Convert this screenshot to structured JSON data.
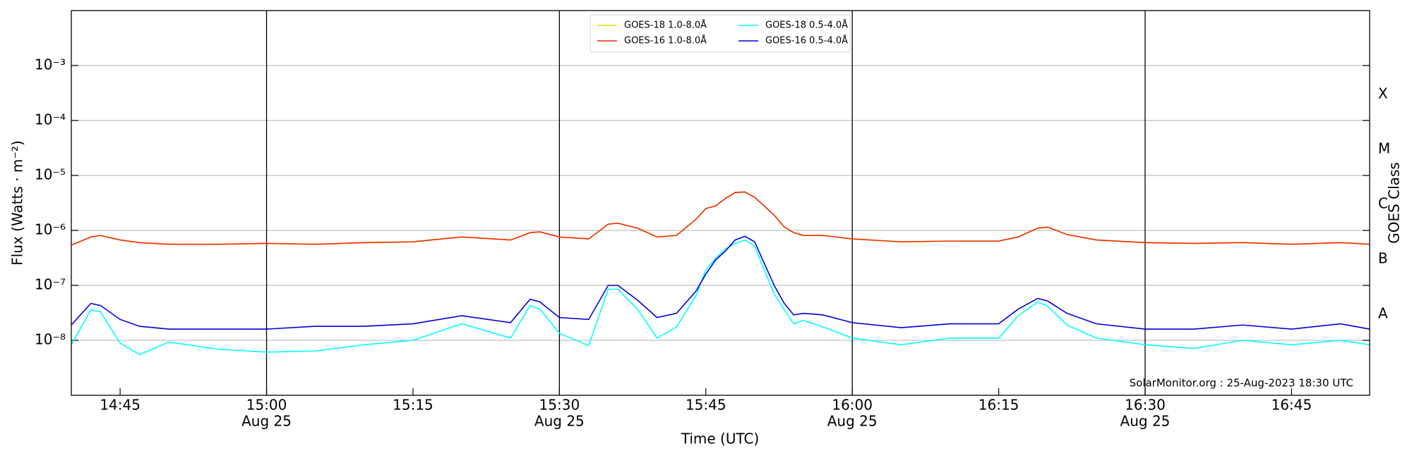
{
  "chart_data": {
    "type": "line",
    "ylabel": "Flux (Watts · m⁻²)",
    "xlabel": "Time (UTC)",
    "annotation": "SolarMonitor.org : 25-Aug-2023 18:30 UTC",
    "log_y": true,
    "grid": true,
    "legend": "upper center",
    "x": [
      "14:40",
      "14:42",
      "14:43",
      "14:45",
      "14:47",
      "14:50",
      "14:55",
      "15:00",
      "15:05",
      "15:10",
      "15:15",
      "15:20",
      "15:25",
      "15:27",
      "15:28",
      "15:30",
      "15:33",
      "15:35",
      "15:36",
      "15:38",
      "15:40",
      "15:42",
      "15:44",
      "15:45",
      "15:46",
      "15:47",
      "15:48",
      "15:49",
      "15:50",
      "15:52",
      "15:53",
      "15:54",
      "15:55",
      "15:57",
      "16:00",
      "16:05",
      "16:10",
      "16:15",
      "16:17",
      "16:19",
      "16:20",
      "16:22",
      "16:25",
      "16:30",
      "16:35",
      "16:40",
      "16:45",
      "16:50",
      "16:53"
    ],
    "xlim": [
      "14:40",
      "16:53"
    ],
    "xticks": [
      "14:45",
      {
        "value": "15:00",
        "label": "15:00",
        "date": "Aug 25"
      },
      "15:15",
      {
        "value": "15:30",
        "label": "15:30",
        "date": "Aug 25"
      },
      "15:45",
      {
        "value": "16:00",
        "label": "16:00",
        "date": "Aug 25"
      },
      "16:15",
      {
        "value": "16:30",
        "label": "16:30",
        "date": "Aug 25"
      },
      "16:45"
    ],
    "ylim": [
      1e-09,
      0.01
    ],
    "yticks": [
      {
        "value": 1e-08,
        "label": "10⁻⁸"
      },
      {
        "value": 1e-07,
        "label": "10⁻⁷"
      },
      {
        "value": 1e-06,
        "label": "10⁻⁶"
      },
      {
        "value": 1e-05,
        "label": "10⁻⁵"
      },
      {
        "value": 0.0001,
        "label": "10⁻⁴"
      },
      {
        "value": 0.001,
        "label": "10⁻³"
      }
    ],
    "y2label": "GOES Class",
    "y2lim": [
      1e-09,
      0.01
    ],
    "y2ticks": [
      {
        "value": 3e-08,
        "label": "A"
      },
      {
        "value": 3e-07,
        "label": "B"
      },
      {
        "value": 3e-06,
        "label": "C"
      },
      {
        "value": 3e-05,
        "label": "M"
      },
      {
        "value": 0.0003,
        "label": "X"
      }
    ],
    "series": [
      {
        "name": "GOES-18 1.0-8.0Å",
        "color": "#ffd700",
        "values": [
          5.4e-07,
          7.6e-07,
          8.1e-07,
          6.7e-07,
          6e-07,
          5.6e-07,
          5.6e-07,
          5.8e-07,
          5.6e-07,
          6e-07,
          6.2e-07,
          7.6e-07,
          6.7e-07,
          9.1e-07,
          9.4e-07,
          7.6e-07,
          7e-07,
          1.3e-06,
          1.35e-06,
          1.1e-06,
          7.6e-07,
          8.1e-07,
          1.6e-06,
          2.5e-06,
          2.8e-06,
          3.8e-06,
          4.9e-06,
          5e-06,
          4e-06,
          1.9e-06,
          1.17e-06,
          9.1e-07,
          8.1e-07,
          8.1e-07,
          7e-07,
          6.2e-07,
          6.4e-07,
          6.4e-07,
          7.6e-07,
          1.1e-06,
          1.15e-06,
          8.4e-07,
          6.7e-07,
          6e-07,
          5.8e-07,
          6e-07,
          5.6e-07,
          6e-07,
          5.6e-07
        ]
      },
      {
        "name": "GOES-16 1.0-8.0Å",
        "color": "#ee2c00",
        "values": [
          5.4e-07,
          7.6e-07,
          8.1e-07,
          6.7e-07,
          6e-07,
          5.6e-07,
          5.6e-07,
          5.8e-07,
          5.6e-07,
          6e-07,
          6.2e-07,
          7.6e-07,
          6.7e-07,
          9.1e-07,
          9.4e-07,
          7.6e-07,
          7e-07,
          1.3e-06,
          1.35e-06,
          1.1e-06,
          7.6e-07,
          8.1e-07,
          1.6e-06,
          2.5e-06,
          2.8e-06,
          3.8e-06,
          4.9e-06,
          5e-06,
          4e-06,
          1.9e-06,
          1.17e-06,
          9.1e-07,
          8.1e-07,
          8.1e-07,
          7e-07,
          6.2e-07,
          6.4e-07,
          6.4e-07,
          7.6e-07,
          1.1e-06,
          1.15e-06,
          8.4e-07,
          6.7e-07,
          6e-07,
          5.8e-07,
          6e-07,
          5.6e-07,
          6e-07,
          5.6e-07
        ]
      },
      {
        "name": "GOES-18 0.5-4.0Å",
        "color": "#00ffff",
        "values": [
          8.3e-09,
          3.6e-08,
          3.3e-08,
          8.9e-09,
          5.5e-09,
          9.3e-09,
          6.9e-09,
          6.1e-09,
          6.4e-09,
          8.3e-09,
          1e-08,
          2e-08,
          1.1e-08,
          4.3e-08,
          3.7e-08,
          1.35e-08,
          8e-09,
          8.5e-08,
          8.5e-08,
          3.7e-08,
          1.1e-08,
          1.75e-08,
          6.5e-08,
          1.9e-07,
          3.1e-07,
          4.6e-07,
          5.8e-07,
          6.7e-07,
          5.2e-07,
          7e-08,
          3.7e-08,
          2e-08,
          2.3e-08,
          1.75e-08,
          1.1e-08,
          8.3e-09,
          1.1e-08,
          1.1e-08,
          2.8e-08,
          5e-08,
          4.2e-08,
          1.9e-08,
          1.1e-08,
          8.3e-09,
          7.1e-09,
          1e-08,
          8.3e-09,
          1e-08,
          8.3e-09
        ]
      },
      {
        "name": "GOES-16 0.5-4.0Å",
        "color": "#0000dd",
        "values": [
          1.9e-08,
          4.7e-08,
          4.3e-08,
          2.4e-08,
          1.8e-08,
          1.6e-08,
          1.6e-08,
          1.6e-08,
          1.8e-08,
          1.8e-08,
          2e-08,
          2.8e-08,
          2.1e-08,
          5.6e-08,
          5e-08,
          2.6e-08,
          2.4e-08,
          1e-07,
          1e-07,
          5.4e-08,
          2.6e-08,
          3.1e-08,
          7.9e-08,
          1.6e-07,
          2.9e-07,
          4.2e-07,
          6.7e-07,
          7.8e-07,
          6.2e-07,
          1e-07,
          4.8e-08,
          2.9e-08,
          3.1e-08,
          2.9e-08,
          2.1e-08,
          1.7e-08,
          2e-08,
          2e-08,
          3.7e-08,
          5.8e-08,
          5.2e-08,
          3.1e-08,
          2e-08,
          1.6e-08,
          1.6e-08,
          1.9e-08,
          1.6e-08,
          2e-08,
          1.6e-08
        ]
      }
    ]
  }
}
